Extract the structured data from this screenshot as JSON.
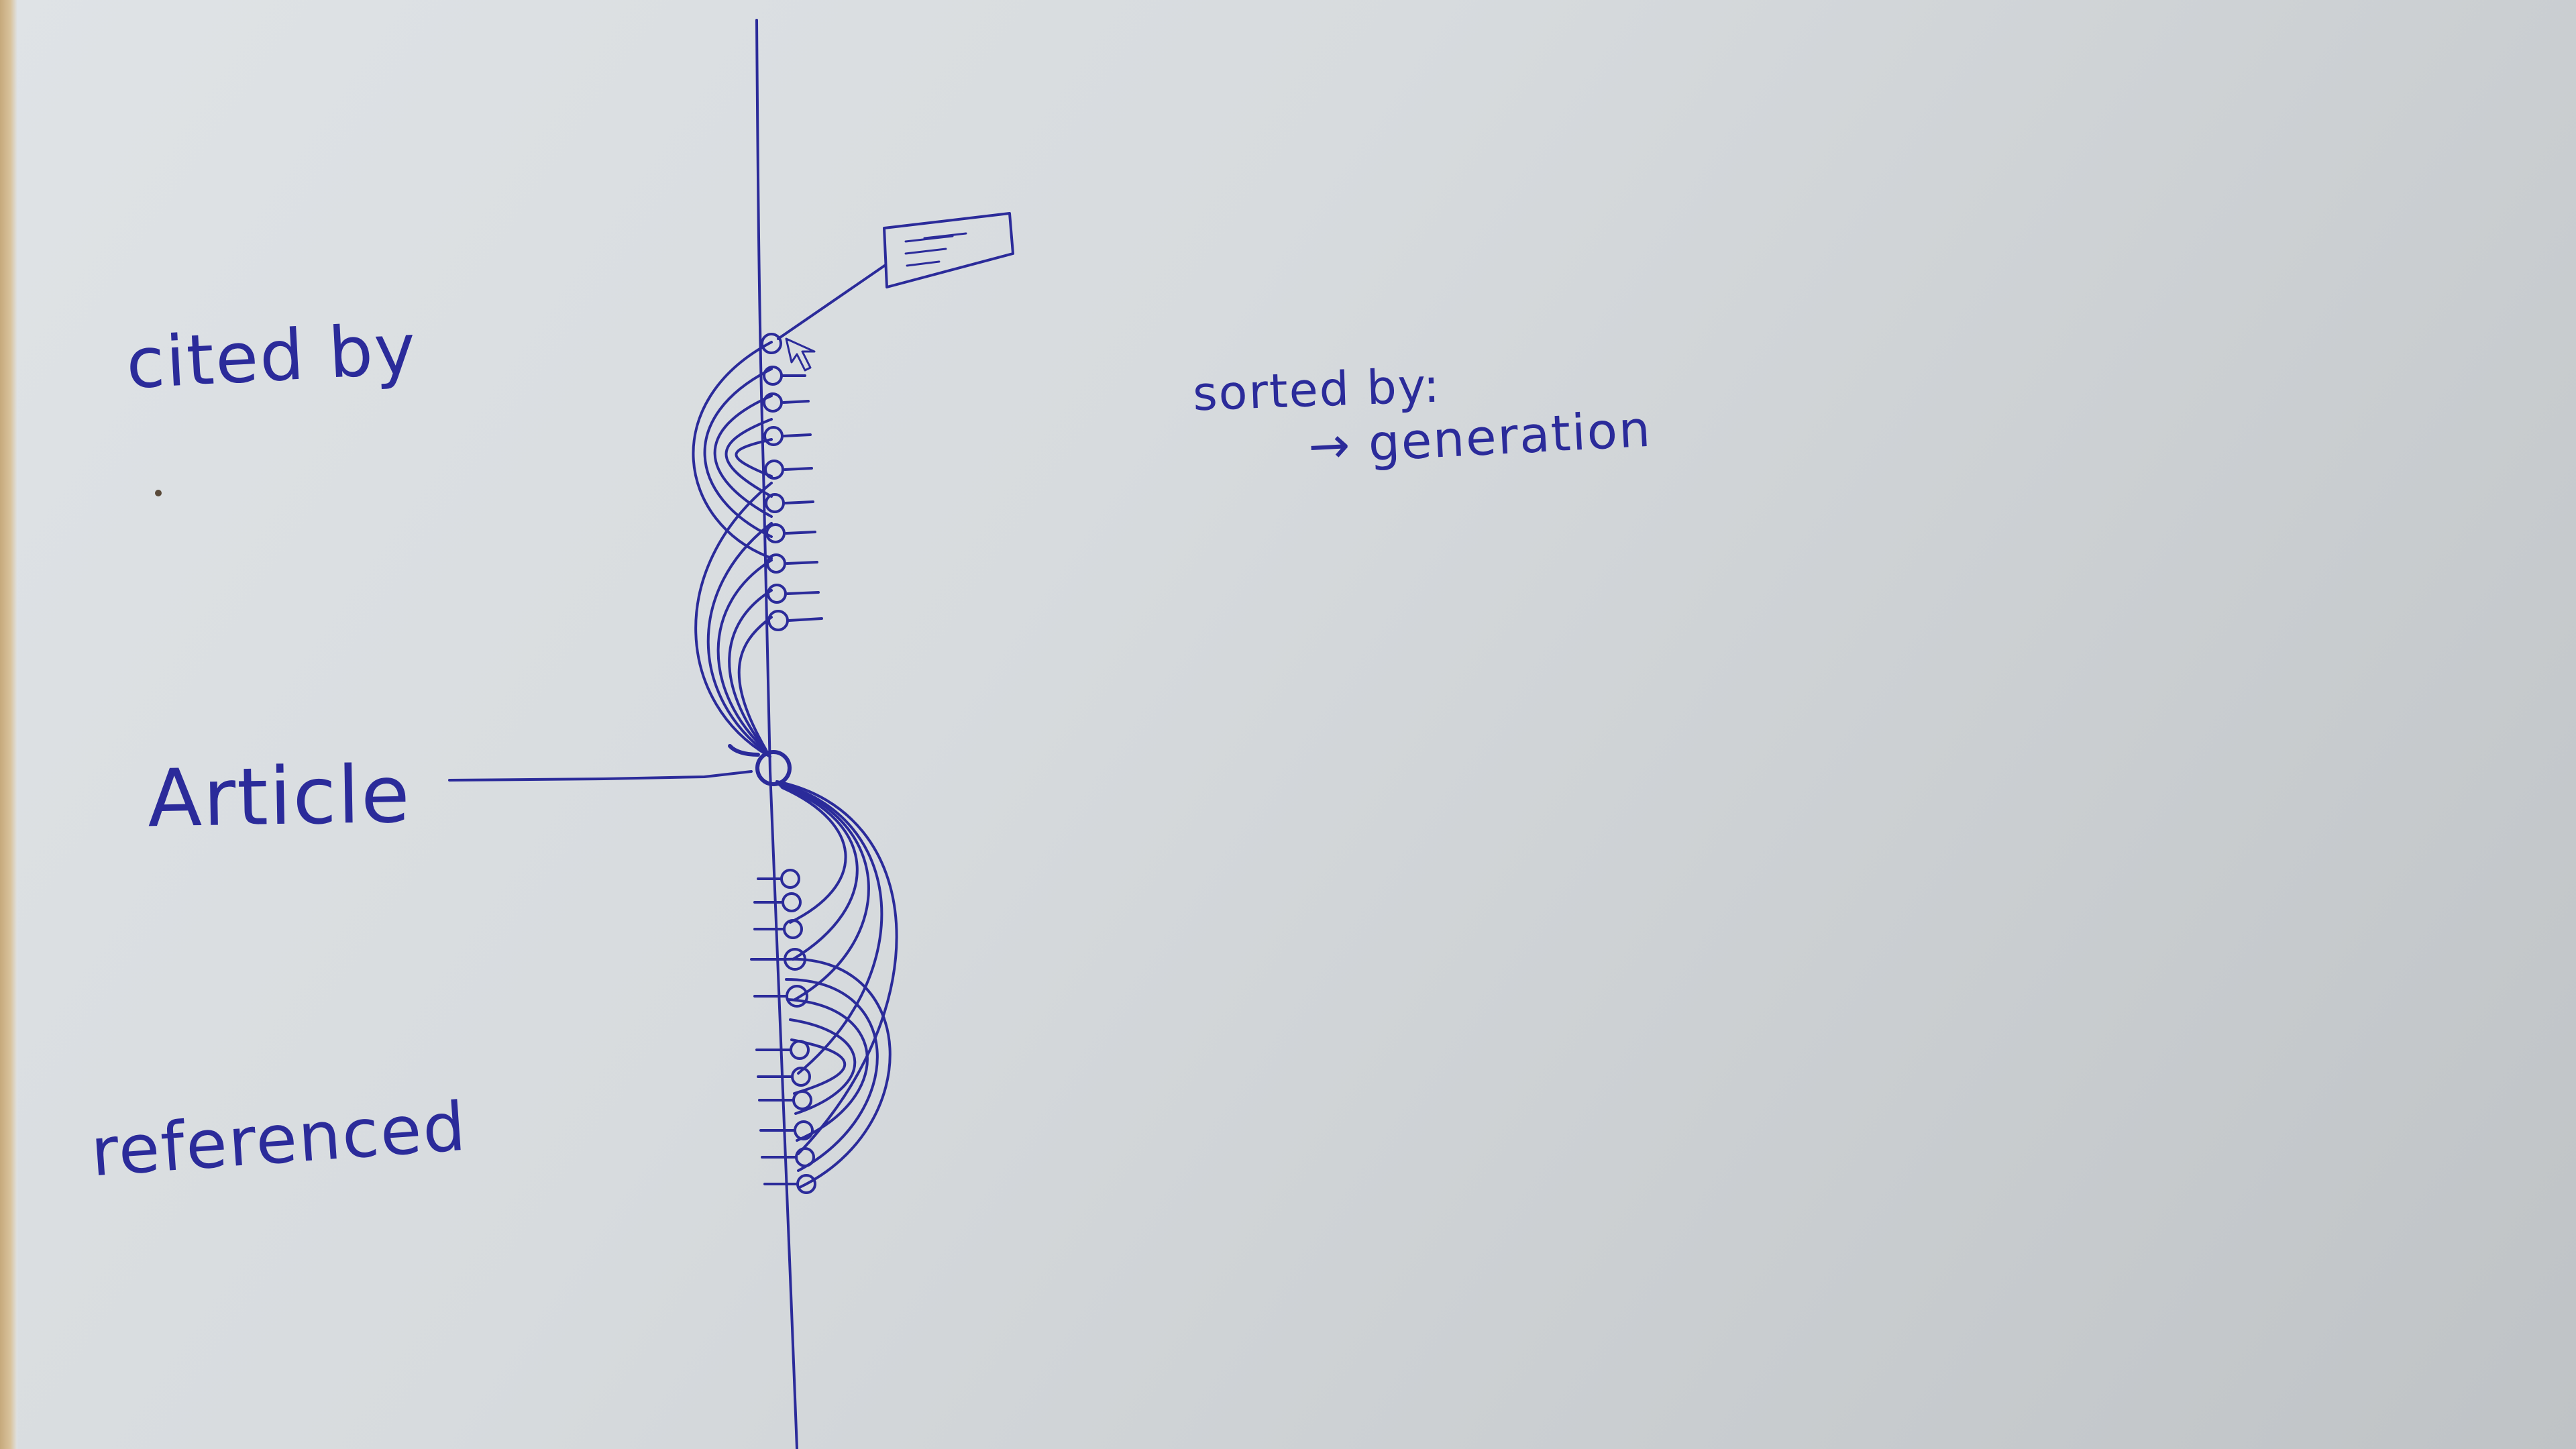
{
  "labels": {
    "cited_by": "cited by",
    "article": "Article",
    "referenced": "referenced",
    "sorted_by": "sorted by:",
    "sort_value": "→ generation"
  },
  "colors": {
    "ink": "#2b2b9a",
    "paper": "#d9dde0"
  },
  "icons": {
    "cursor": "arrow-cursor-icon",
    "tooltip": "text-card-icon"
  }
}
